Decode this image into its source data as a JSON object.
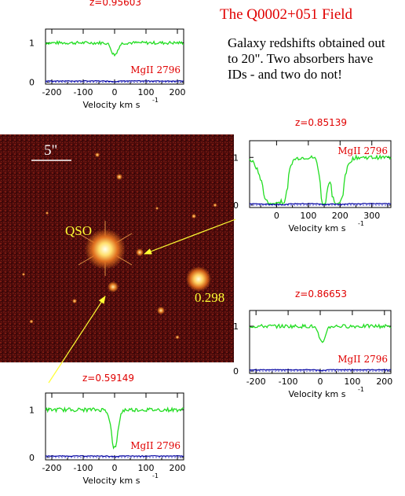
{
  "header": {
    "title": "The Q0002+051 Field",
    "description_lines": [
      "Galaxy redshifts obtained out",
      "to 20\".  Two absorbers have",
      "IDs - and two do not!"
    ]
  },
  "image": {
    "scale_label": "5\"",
    "qso_label": "QSO",
    "galaxy_label": "0.298"
  },
  "colors": {
    "flux": "#22dd22",
    "error": "#0000a0",
    "zero_line": "#4a4ad0",
    "label": "#e00000",
    "annotation": "#ffff33",
    "frame": "#000000"
  },
  "chart_data": [
    {
      "type": "line",
      "id": "z095603",
      "redshift_label": "z=0.95603",
      "line_label": "MgII 2796",
      "xlabel": "Velocity km s",
      "xlabel_sup": "-1",
      "xlim": [
        -220,
        220
      ],
      "ylim": [
        -0.05,
        1.35
      ],
      "xticks": [
        -200,
        -100,
        0,
        100,
        200
      ],
      "yticks": [
        0,
        1
      ],
      "absorption": [
        {
          "center": 0,
          "depth": 0.3,
          "width": 10
        }
      ]
    },
    {
      "type": "line",
      "id": "z085139",
      "redshift_label": "z=0.85139",
      "line_label": "MgII 2796",
      "xlabel": "Velocity km s",
      "xlabel_sup": "-1",
      "xlim": [
        -85,
        360
      ],
      "ylim": [
        -0.05,
        1.35
      ],
      "xticks": [
        0,
        100,
        200,
        300
      ],
      "yticks": [
        0,
        1
      ],
      "absorption": [
        {
          "center": -15,
          "depth": 1.0,
          "width": 28
        },
        {
          "center": 25,
          "depth": 0.55,
          "width": 10
        },
        {
          "center": 148,
          "depth": 0.95,
          "width": 10
        },
        {
          "center": 192,
          "depth": 1.0,
          "width": 18
        }
      ]
    },
    {
      "type": "line",
      "id": "z086653",
      "redshift_label": "z=0.86653",
      "line_label": "MgII 2796",
      "xlabel": "Velocity km s",
      "xlabel_sup": "-1",
      "xlim": [
        -220,
        220
      ],
      "ylim": [
        -0.05,
        1.35
      ],
      "xticks": [
        -200,
        -100,
        0,
        100,
        200
      ],
      "yticks": [
        0,
        1
      ],
      "absorption": [
        {
          "center": 5,
          "depth": 0.35,
          "width": 10
        }
      ]
    },
    {
      "type": "line",
      "id": "z059149",
      "redshift_label": "z=0.59149",
      "line_label": "MgII 2796",
      "xlabel": "Velocity km s",
      "xlabel_sup": "-1",
      "xlim": [
        -220,
        220
      ],
      "ylim": [
        -0.05,
        1.35
      ],
      "xticks": [
        -200,
        -100,
        0,
        100,
        200
      ],
      "yticks": [
        0,
        1
      ],
      "absorption": [
        {
          "center": 0,
          "depth": 0.8,
          "width": 10
        }
      ]
    }
  ]
}
